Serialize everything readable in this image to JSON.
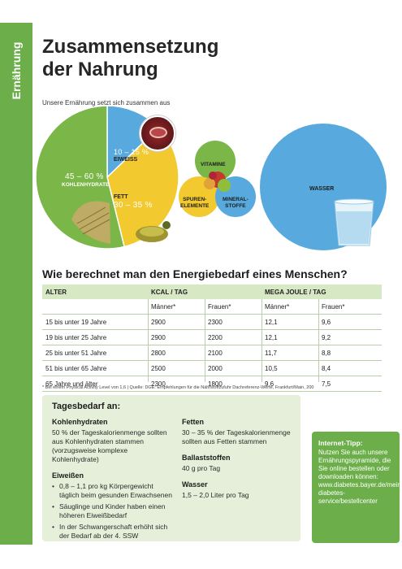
{
  "side_tab": {
    "label": "Ernährung",
    "color": "#6cae4a"
  },
  "title_line1": "Zusammensetzung",
  "title_line2": "der Nahrung",
  "subtitle": "Unsere Ernährung setzt sich zusammen aus",
  "chart_data": {
    "type": "pie",
    "title": "",
    "slices": [
      {
        "name": "KOHLENHYDRATE",
        "range": "45 – 60 %",
        "value": 52.5,
        "color": "#7ab648"
      },
      {
        "name": "EIWEISS",
        "range": "10 – 15 %",
        "value": 12.5,
        "color": "#58a9de"
      },
      {
        "name": "FETT",
        "range": "30 – 35 %",
        "value": 32.5,
        "color": "#f2c92e"
      }
    ],
    "other_circles": [
      {
        "name": "VITAMINE",
        "color": "#7ab648"
      },
      {
        "name": "SPUREN-ELEMENTE",
        "color": "#f2c92e"
      },
      {
        "name": "MINERAL-STOFFE",
        "color": "#58a9de"
      },
      {
        "name": "WASSER",
        "color": "#58a9de"
      }
    ]
  },
  "labels": {
    "kh_pct": "45 – 60 %",
    "kh_name": "KOHLENHYDRATE",
    "ei_pct": "10 – 15 %",
    "ei_name": "EIWEISS",
    "fett_name": "FETT",
    "fett_pct": "30 – 35 %",
    "vitamine": "VITAMINE",
    "spuren_1": "SPUREN-",
    "spuren_2": "ELEMENTE",
    "mineral_1": "MINERAL-",
    "mineral_2": "STOFFE",
    "wasser": "WASSER"
  },
  "question": "Wie berechnet man den Energiebedarf eines Menschen?",
  "table": {
    "col_alter": "ALTER",
    "col_kcal": "KCAL / TAG",
    "col_mj": "MEGA JOULE / TAG",
    "sub": [
      "Männer*",
      "Frauen*",
      "Männer*",
      "Frauen*"
    ],
    "rows": [
      [
        "15 bis unter 19 Jahre",
        "2900",
        "2300",
        "12,1",
        "9,6"
      ],
      [
        "19 bis unter 25 Jahre",
        "2900",
        "2200",
        "12,1",
        "9,2"
      ],
      [
        "25 bis unter 51 Jahre",
        "2800",
        "2100",
        "11,7",
        "8,8"
      ],
      [
        "51 bis unter 65 Jahre",
        "2500",
        "2000",
        "10,5",
        "8,4"
      ],
      [
        "65 Jahre und älter",
        "2300",
        "1800",
        "9,6",
        "7,5"
      ]
    ]
  },
  "footnote": "* Bei einem Physical Activity Level von 1,6 | Quelle: DGE: Empfehlungen für die Nährstoffzufuhr Dachreferenz-Werte, Frankfurt/Main, 200",
  "box": {
    "title": "Tagesbedarf an:",
    "kh_head": "Kohlenhydraten",
    "kh_text": "50 % der Tageskalorienmenge sollten aus Kohlenhydraten stammen (vorzugsweise komplexe Kohlenhydrate)",
    "eiw_head": "Eiweißen",
    "eiw_b1": "0,8 – 1,1 pro kg Körpergewicht täglich beim gesunden Erwachsenen",
    "eiw_b2": "Säuglinge und Kinder haben einen höheren Eiweißbedarf",
    "eiw_b3": "In der Schwangerschaft erhöht sich der Bedarf ab der 4. SSW",
    "fett_head": "Fetten",
    "fett_text": "30 – 35 % der Tageskalorienmenge sollten aus Fetten stammen",
    "bal_head": "Ballaststoffen",
    "bal_text": "40 g pro Tag",
    "wasser_head": "Wasser",
    "wasser_text": "1,5 – 2,0 Liter pro Tag"
  },
  "tip": {
    "title": "Internet-Tipp:",
    "text": "Nutzen Sie auch unsere Ernährungspyramide, die Sie online bestellen oder downloaden können: www.diabetes.bayer.de/mein-diabetes-service/bestellcenter"
  }
}
